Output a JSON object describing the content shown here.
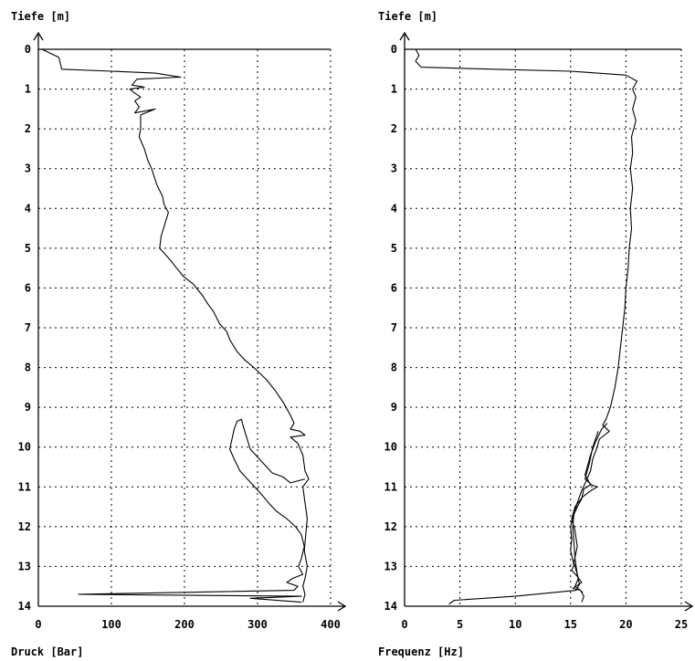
{
  "chart_data": [
    {
      "type": "line",
      "ylabel": "Tiefe [m]",
      "xlabel": "Druck [Bar]",
      "xlim": [
        0,
        400
      ],
      "ylim": [
        0,
        14
      ],
      "y_inverted": true,
      "grid": true,
      "x_ticks": [
        "0",
        "100",
        "200",
        "300",
        "400"
      ],
      "y_ticks": [
        "0",
        "1",
        "2",
        "3",
        "4",
        "5",
        "6",
        "7",
        "8",
        "9",
        "10",
        "11",
        "12",
        "13",
        "14"
      ],
      "series": [
        {
          "points": [
            [
              5,
              0
            ],
            [
              28,
              0.2
            ],
            [
              32,
              0.5
            ],
            [
              100,
              0.55
            ],
            [
              160,
              0.6
            ],
            [
              195,
              0.7
            ],
            [
              135,
              0.75
            ],
            [
              128,
              0.9
            ],
            [
              145,
              0.95
            ],
            [
              125,
              1.0
            ],
            [
              132,
              1.1
            ],
            [
              140,
              1.2
            ],
            [
              132,
              1.3
            ],
            [
              138,
              1.45
            ],
            [
              132,
              1.6
            ],
            [
              160,
              1.5
            ],
            [
              140,
              1.65
            ],
            [
              140,
              2.0
            ],
            [
              138,
              2.2
            ],
            [
              145,
              2.5
            ],
            [
              150,
              2.8
            ],
            [
              155,
              3.0
            ],
            [
              162,
              3.4
            ],
            [
              170,
              3.7
            ],
            [
              172,
              3.9
            ],
            [
              178,
              4.1
            ],
            [
              173,
              4.4
            ],
            [
              168,
              4.7
            ],
            [
              166,
              5.0
            ],
            [
              176,
              5.2
            ],
            [
              185,
              5.4
            ],
            [
              198,
              5.7
            ],
            [
              212,
              5.9
            ],
            [
              225,
              6.2
            ],
            [
              232,
              6.4
            ],
            [
              240,
              6.6
            ],
            [
              248,
              6.9
            ],
            [
              258,
              7.1
            ],
            [
              262,
              7.3
            ],
            [
              272,
              7.6
            ],
            [
              282,
              7.8
            ],
            [
              295,
              8.0
            ],
            [
              312,
              8.3
            ],
            [
              325,
              8.6
            ],
            [
              336,
              8.9
            ],
            [
              345,
              9.2
            ],
            [
              350,
              9.4
            ],
            [
              345,
              9.55
            ],
            [
              358,
              9.6
            ],
            [
              365,
              9.7
            ],
            [
              345,
              9.75
            ],
            [
              355,
              9.9
            ],
            [
              362,
              10.2
            ],
            [
              365,
              10.6
            ],
            [
              370,
              10.8
            ],
            [
              362,
              11.0
            ],
            [
              365,
              11.4
            ],
            [
              368,
              11.8
            ],
            [
              366,
              12.2
            ],
            [
              364,
              12.6
            ],
            [
              368,
              13.0
            ],
            [
              365,
              13.3
            ],
            [
              362,
              13.5
            ],
            [
              365,
              13.7
            ],
            [
              362,
              13.9
            ]
          ]
        },
        {
          "points": [
            [
              365,
              10.8
            ],
            [
              345,
              10.9
            ],
            [
              335,
              10.75
            ],
            [
              320,
              10.65
            ],
            [
              305,
              10.35
            ],
            [
              290,
              10.05
            ],
            [
              285,
              9.75
            ],
            [
              280,
              9.45
            ],
            [
              278,
              9.3
            ],
            [
              272,
              9.35
            ],
            [
              268,
              9.55
            ],
            [
              265,
              9.8
            ],
            [
              262,
              10.05
            ],
            [
              268,
              10.3
            ],
            [
              276,
              10.6
            ],
            [
              286,
              10.8
            ],
            [
              296,
              11.0
            ],
            [
              306,
              11.2
            ],
            [
              315,
              11.4
            ],
            [
              325,
              11.6
            ],
            [
              340,
              11.8
            ],
            [
              352,
              12.0
            ],
            [
              360,
              12.2
            ],
            [
              364,
              12.5
            ],
            [
              360,
              12.8
            ],
            [
              356,
              13.0
            ],
            [
              362,
              13.2
            ],
            [
              348,
              13.3
            ],
            [
              340,
              13.4
            ],
            [
              355,
              13.5
            ],
            [
              350,
              13.6
            ],
            [
              200,
              13.65
            ],
            [
              55,
              13.7
            ],
            [
              360,
              13.75
            ],
            [
              290,
              13.8
            ],
            [
              360,
              13.9
            ]
          ]
        }
      ]
    },
    {
      "type": "line",
      "ylabel": "Tiefe [m]",
      "xlabel": "Frequenz [Hz]",
      "xlim": [
        0,
        25
      ],
      "ylim": [
        0,
        14
      ],
      "y_inverted": true,
      "grid": true,
      "x_ticks": [
        "0",
        "5",
        "10",
        "15",
        "20",
        "25"
      ],
      "y_ticks": [
        "0",
        "1",
        "2",
        "3",
        "4",
        "5",
        "6",
        "7",
        "8",
        "9",
        "10",
        "11",
        "12",
        "13",
        "14"
      ],
      "series": [
        {
          "points": [
            [
              1.0,
              0
            ],
            [
              1.3,
              0.15
            ],
            [
              1.0,
              0.3
            ],
            [
              1.5,
              0.45
            ],
            [
              8,
              0.5
            ],
            [
              15,
              0.55
            ],
            [
              20,
              0.65
            ],
            [
              21,
              0.8
            ],
            [
              20.6,
              1.0
            ],
            [
              20.9,
              1.2
            ],
            [
              20.6,
              1.5
            ],
            [
              20.9,
              1.8
            ],
            [
              20.5,
              2.2
            ],
            [
              20.6,
              2.6
            ],
            [
              20.4,
              3.0
            ],
            [
              20.6,
              3.5
            ],
            [
              20.4,
              4.0
            ],
            [
              20.5,
              4.5
            ],
            [
              20.3,
              5.0
            ],
            [
              20.2,
              5.5
            ],
            [
              20.0,
              6.0
            ],
            [
              19.9,
              6.5
            ],
            [
              19.7,
              7.0
            ],
            [
              19.5,
              7.5
            ],
            [
              19.3,
              8.0
            ],
            [
              19.0,
              8.5
            ],
            [
              18.6,
              9.0
            ],
            [
              18.2,
              9.3
            ],
            [
              17.9,
              9.45
            ],
            [
              18.5,
              9.6
            ],
            [
              17.6,
              9.8
            ],
            [
              17.4,
              10.0
            ],
            [
              17.0,
              10.3
            ],
            [
              16.8,
              10.6
            ],
            [
              16.4,
              10.85
            ],
            [
              16.0,
              11.1
            ],
            [
              15.6,
              11.4
            ],
            [
              15.3,
              11.7
            ],
            [
              15.2,
              12.0
            ],
            [
              15.3,
              12.4
            ],
            [
              15.4,
              12.8
            ],
            [
              15.6,
              13.2
            ],
            [
              15.8,
              13.45
            ],
            [
              15.5,
              13.6
            ],
            [
              10,
              13.75
            ],
            [
              4.5,
              13.85
            ],
            [
              4.0,
              13.95
            ]
          ]
        },
        {
          "points": [
            [
              18.3,
              9.4
            ],
            [
              17.8,
              9.55
            ],
            [
              17.2,
              9.9
            ],
            [
              16.8,
              10.2
            ],
            [
              16.5,
              10.5
            ],
            [
              16.3,
              10.7
            ],
            [
              16.8,
              10.95
            ],
            [
              16.2,
              11.05
            ],
            [
              16.0,
              11.3
            ],
            [
              15.6,
              11.5
            ],
            [
              15.2,
              11.75
            ],
            [
              15.0,
              12.0
            ],
            [
              15.1,
              12.3
            ],
            [
              15.0,
              12.6
            ],
            [
              15.3,
              12.95
            ],
            [
              15.1,
              13.1
            ],
            [
              15.6,
              13.25
            ],
            [
              16.0,
              13.4
            ],
            [
              15.2,
              13.55
            ],
            [
              15.9,
              13.6
            ],
            [
              16.2,
              13.75
            ],
            [
              16.0,
              13.9
            ]
          ]
        },
        {
          "points": [
            [
              17.5,
              9.6
            ],
            [
              17.0,
              10.0
            ],
            [
              16.7,
              10.4
            ],
            [
              16.3,
              10.8
            ],
            [
              16.9,
              10.95
            ],
            [
              17.4,
              11.0
            ],
            [
              16.8,
              11.1
            ],
            [
              16.1,
              11.25
            ],
            [
              15.4,
              11.5
            ],
            [
              15.1,
              11.8
            ],
            [
              15.4,
              12.1
            ],
            [
              15.6,
              12.5
            ],
            [
              15.3,
              12.9
            ],
            [
              15.7,
              13.3
            ],
            [
              15.4,
              13.5
            ],
            [
              16.1,
              13.65
            ]
          ]
        }
      ]
    }
  ]
}
